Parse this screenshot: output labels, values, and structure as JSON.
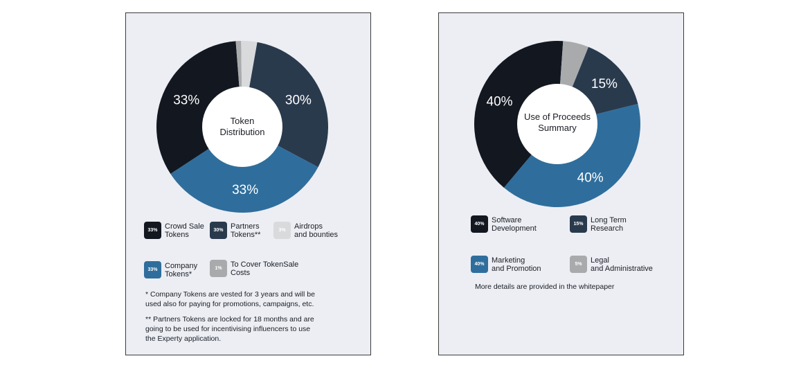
{
  "colors": {
    "dark": "#131720",
    "slate": "#2a3a4d",
    "blue": "#2f6e9c",
    "light": "#d9dadc",
    "grey": "#a9aaac",
    "text": "#1a1d24"
  },
  "chart_data": [
    {
      "type": "pie",
      "title": "Token Distribution",
      "slices": [
        {
          "label": "Partners Tokens**",
          "value": 30,
          "pct_label": "30%",
          "swatch_label": "30%",
          "color": "#2a3a4d"
        },
        {
          "label": "Company Tokens*",
          "value": 33,
          "pct_label": "33%",
          "swatch_label": "33%",
          "color": "#2f6e9c"
        },
        {
          "label": "Crowd Sale Tokens",
          "value": 33,
          "pct_label": "33%",
          "swatch_label": "33%",
          "color": "#131720"
        },
        {
          "label": "To Cover TokenSale Costs",
          "value": 1,
          "pct_label": "",
          "swatch_label": "1%",
          "color": "#a9aaac"
        },
        {
          "label": "Airdrops and bounties",
          "value": 3,
          "pct_label": "",
          "swatch_label": "3%",
          "color": "#d9dadc"
        }
      ]
    },
    {
      "type": "pie",
      "title": "Use of Proceeds Summary",
      "slices": [
        {
          "label": "Long Term Research",
          "value": 15,
          "pct_label": "15%",
          "swatch_label": "15%",
          "color": "#2a3a4d"
        },
        {
          "label": "Marketing and Promotion",
          "value": 40,
          "pct_label": "40%",
          "swatch_label": "40%",
          "color": "#2f6e9c"
        },
        {
          "label": "Software Development",
          "value": 40,
          "pct_label": "40%",
          "swatch_label": "40%",
          "color": "#131720"
        },
        {
          "label": "Legal and Administrative",
          "value": 5,
          "pct_label": "",
          "swatch_label": "5%",
          "color": "#a9aaac"
        }
      ]
    }
  ],
  "card1": {
    "center_line1": "Token",
    "center_line2": "Distribution",
    "legend": {
      "crowd_swatch": "33%",
      "crowd_line1": "Crowd Sale",
      "crowd_line2": "Tokens",
      "partners_swatch": "30%",
      "partners_line1": "Partners",
      "partners_line2": "Tokens**",
      "airdrops_swatch": "3%",
      "airdrops_line1": "Airdrops",
      "airdrops_line2": "and bounties",
      "company_swatch": "33%",
      "company_line1": "Company",
      "company_line2": "Tokens*",
      "costs_swatch": "1%",
      "costs_line1": "To Cover TokenSale",
      "costs_line2": "Costs"
    },
    "note1_line1": "* Company Tokens are vested for 3 years and will be",
    "note1_line2": "used also for paying for promotions, campaigns, etc.",
    "note2_line1": "** Partners Tokens are locked for 18 months and are",
    "note2_line2": "going to be used for incentivising influencers to use",
    "note2_line3": "the Experty application."
  },
  "card2": {
    "center_line1": "Use of Proceeds",
    "center_line2": "Summary",
    "legend": {
      "software_swatch": "40%",
      "software_line1": "Software",
      "software_line2": "Development",
      "research_swatch": "15%",
      "research_line1": "Long Term",
      "research_line2": "Research",
      "marketing_swatch": "40%",
      "marketing_line1": "Marketing",
      "marketing_line2": "and Promotion",
      "legal_swatch": "5%",
      "legal_line1": "Legal",
      "legal_line2": "and Administrative"
    },
    "footer": "More details are provided in the whitepaper"
  }
}
